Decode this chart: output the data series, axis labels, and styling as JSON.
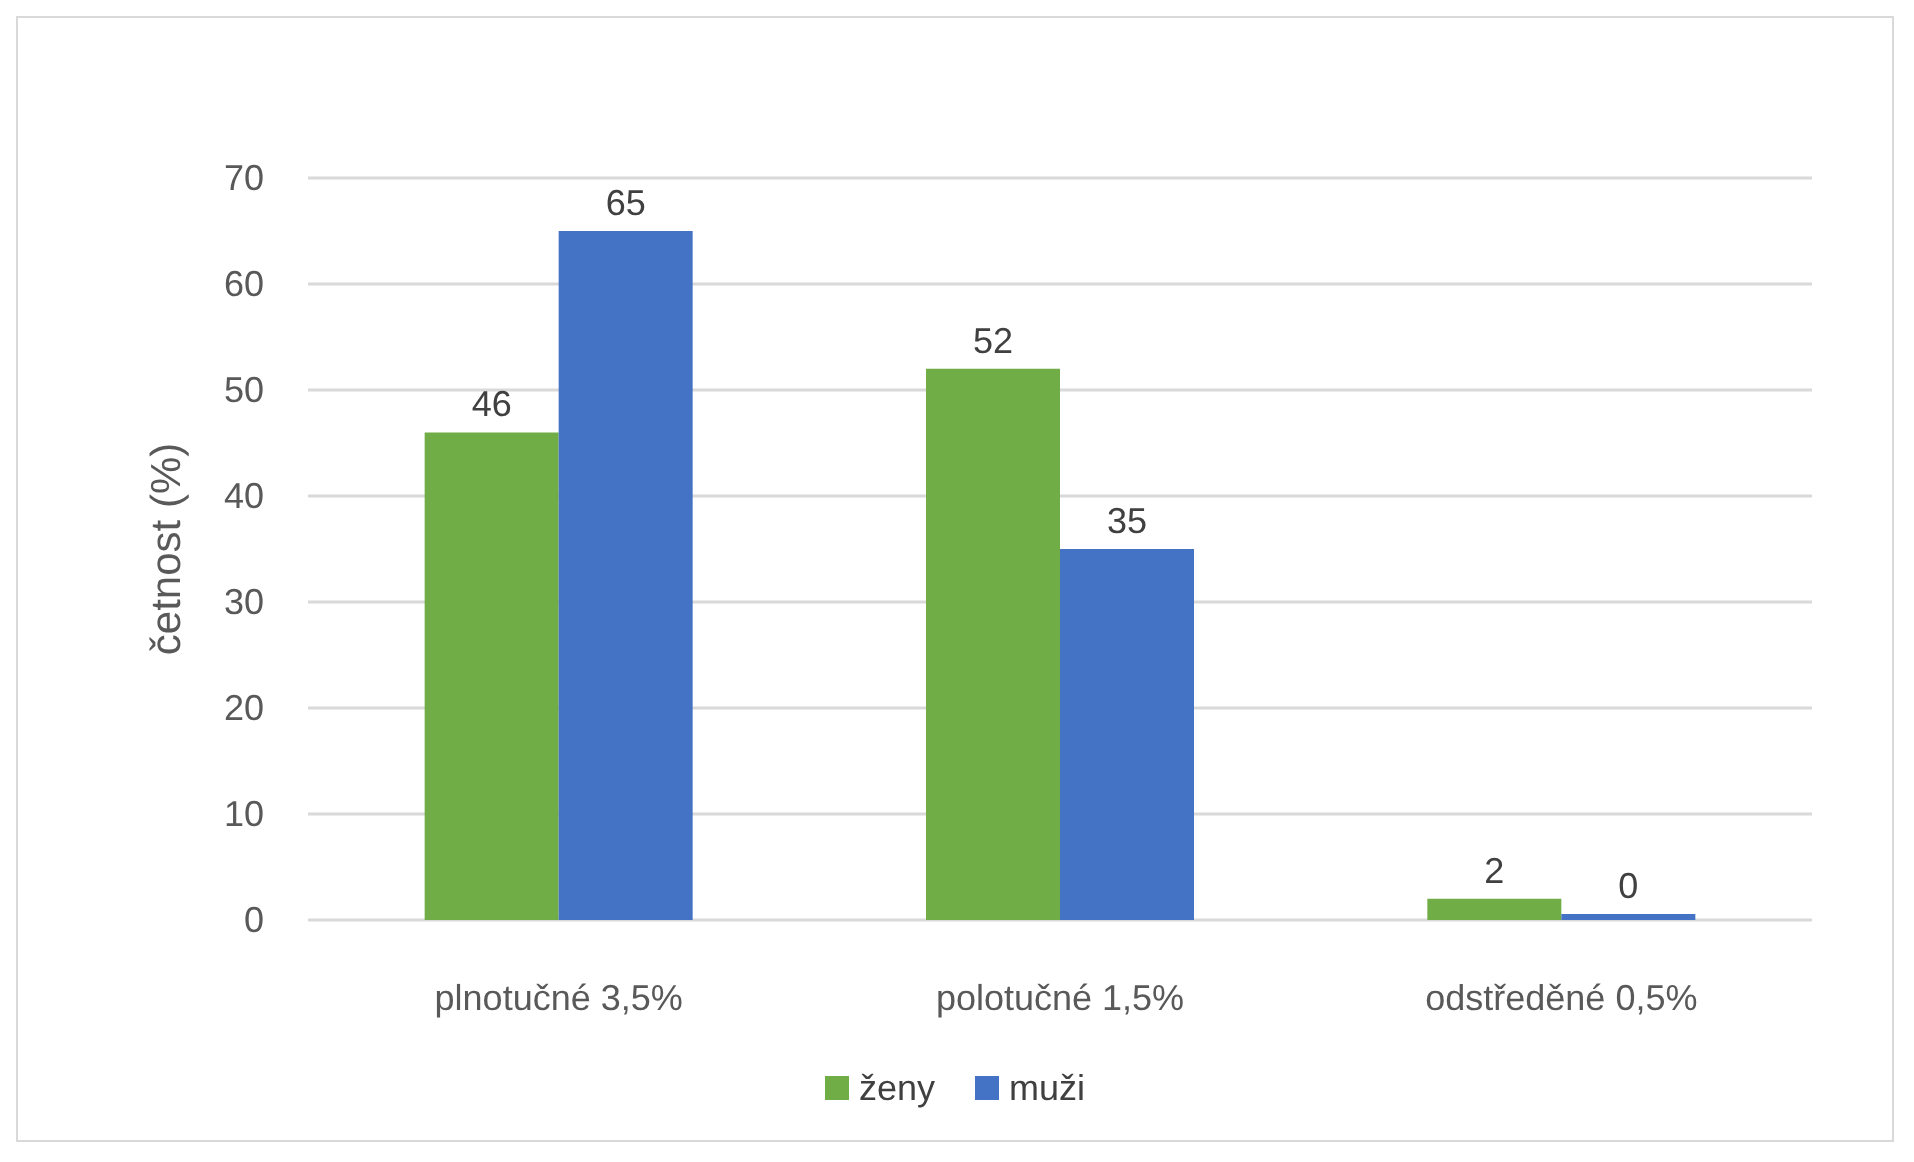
{
  "chart_data": {
    "type": "bar",
    "ylabel": "četnost (%)",
    "categories": [
      "plnotučné 3,5%",
      "polotučné 1,5%",
      "odstředěné 0,5%"
    ],
    "series": [
      {
        "name": "ženy",
        "color": "#70ad47",
        "values": [
          46,
          52,
          2
        ]
      },
      {
        "name": "muži",
        "color": "#4472c4",
        "values": [
          65,
          35,
          0
        ]
      }
    ],
    "ylim": [
      0,
      70
    ],
    "yticks": [
      0,
      10,
      20,
      30,
      40,
      50,
      60,
      70
    ],
    "grid": "y",
    "legend": "bottom",
    "data_labels": true
  }
}
